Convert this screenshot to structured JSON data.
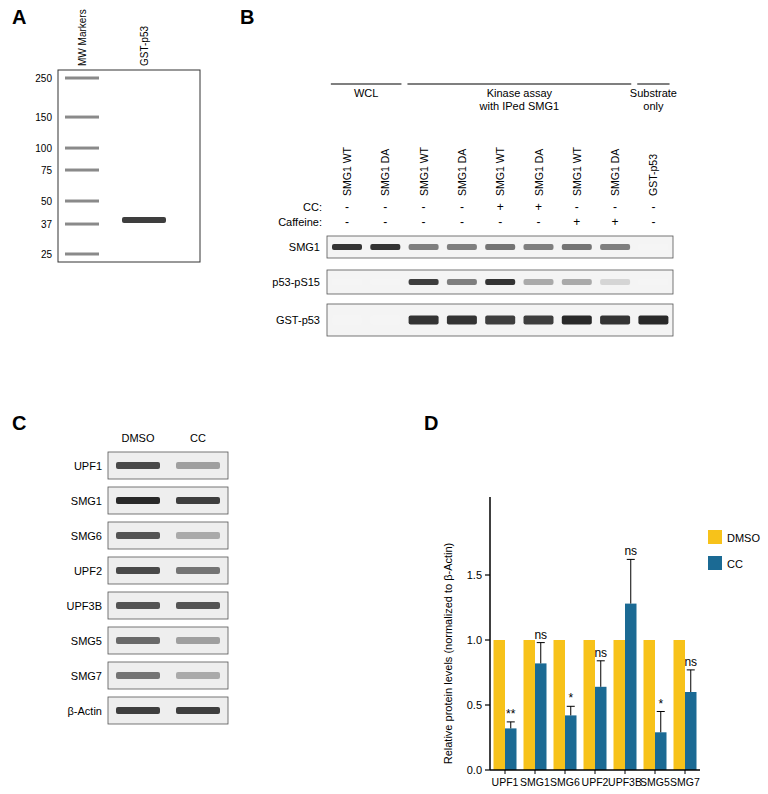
{
  "panels": {
    "A": {
      "label": "A",
      "lanes": [
        "MW Markers",
        "GST-p53"
      ],
      "markers": [
        250,
        150,
        100,
        75,
        50,
        37,
        25
      ],
      "bands": [
        {
          "lane": 1,
          "kda": 39,
          "intensity": 0.85
        }
      ]
    },
    "B": {
      "label": "B",
      "groups": [
        {
          "text": [
            "WCL"
          ],
          "span": 2
        },
        {
          "text": [
            "Kinase assay",
            "with IPed SMG1"
          ],
          "span": 6
        },
        {
          "text": [
            "Substrate",
            "only"
          ],
          "span": 1
        }
      ],
      "lanes": [
        "SMG1 WT",
        "SMG1 DA",
        "SMG1 WT",
        "SMG1 DA",
        "SMG1 WT",
        "SMG1 DA",
        "SMG1 WT",
        "SMG1 DA",
        "GST-p53"
      ],
      "treatments": [
        {
          "name": "CC:",
          "values": [
            "-",
            "-",
            "-",
            "-",
            "+",
            "+",
            "-",
            "-",
            "-"
          ]
        },
        {
          "name": "Caffeine:",
          "values": [
            "-",
            "-",
            "-",
            "-",
            "-",
            "-",
            "+",
            "+",
            "-"
          ]
        }
      ],
      "blots": [
        {
          "name": "SMG1",
          "bands": [
            0.9,
            0.9,
            0.55,
            0.55,
            0.6,
            0.55,
            0.6,
            0.55,
            0
          ]
        },
        {
          "name": "p53-pS15",
          "bands": [
            0,
            0,
            0.85,
            0.55,
            0.9,
            0.35,
            0.35,
            0.15,
            0
          ]
        },
        {
          "name": "GST-p53",
          "bands": [
            0,
            0,
            0.9,
            0.9,
            0.85,
            0.85,
            0.95,
            0.9,
            0.95
          ]
        }
      ]
    },
    "C": {
      "label": "C",
      "columns": [
        "DMSO",
        "CC"
      ],
      "blots": [
        {
          "name": "UPF1",
          "bands": [
            0.8,
            0.4
          ]
        },
        {
          "name": "SMG1",
          "bands": [
            0.95,
            0.85
          ]
        },
        {
          "name": "SMG6",
          "bands": [
            0.75,
            0.35
          ]
        },
        {
          "name": "UPF2",
          "bands": [
            0.8,
            0.6
          ]
        },
        {
          "name": "UPF3B",
          "bands": [
            0.75,
            0.75
          ]
        },
        {
          "name": "SMG5",
          "bands": [
            0.65,
            0.4
          ]
        },
        {
          "name": "SMG7",
          "bands": [
            0.6,
            0.35
          ]
        },
        {
          "name": "β-Actin",
          "bands": [
            0.85,
            0.85
          ]
        }
      ]
    },
    "D": {
      "label": "D"
    }
  },
  "chart_data": {
    "type": "bar",
    "y_label": "Relative protein levels (normalized to β-Actin)",
    "categories": [
      "UPF1",
      "SMG1",
      "SMG6",
      "UPF2",
      "UPF3B",
      "SMG5",
      "SMG7"
    ],
    "series": [
      {
        "name": "DMSO",
        "color": "#f7c21a",
        "values": [
          1,
          1,
          1,
          1,
          1,
          1,
          1
        ]
      },
      {
        "name": "CC",
        "color": "#1b6a94",
        "values": [
          0.32,
          0.82,
          0.42,
          0.64,
          1.28,
          0.29,
          0.6
        ],
        "errors": [
          0.05,
          0.16,
          0.07,
          0.2,
          0.34,
          0.16,
          0.17
        ],
        "significance": [
          "**",
          "ns",
          "*",
          "ns",
          "ns",
          "*",
          "ns"
        ]
      }
    ],
    "ylim": [
      0,
      2.1
    ],
    "yticks": [
      {
        "value": 0,
        "label": "0.0"
      },
      {
        "value": 0.5,
        "label": "0.5"
      },
      {
        "value": 1,
        "label": "1.0"
      },
      {
        "value": 1.5,
        "label": "1.5"
      }
    ],
    "grid": false,
    "legend": "upper right"
  }
}
